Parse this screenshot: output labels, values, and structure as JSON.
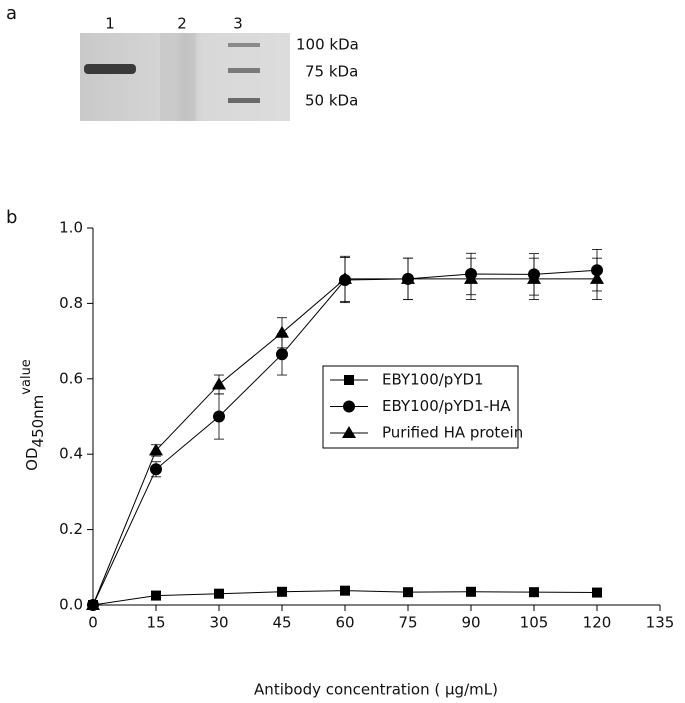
{
  "gel": {
    "label": "a",
    "lanes": [
      "1",
      "2",
      "3"
    ],
    "markers": [
      "100 kDa",
      "75 kDa",
      "50 kDa"
    ]
  },
  "chart_data": {
    "type": "line",
    "panel_label": "b",
    "xlabel": "Antibody concentration ( µg/mL)",
    "ylabel": "OD",
    "ylabel_sub": "450nm",
    "ylabel_tail": "value",
    "xlim": [
      0,
      135
    ],
    "xticks": [
      0,
      15,
      30,
      45,
      60,
      75,
      90,
      105,
      120,
      135
    ],
    "ylim": [
      0,
      1
    ],
    "yticks": [
      {
        "value": 0,
        "label": "0.0"
      },
      0.2,
      0.4,
      0.6,
      0.8,
      {
        "value": 1,
        "label": "1.0"
      }
    ],
    "x": [
      0,
      15,
      30,
      45,
      60,
      75,
      90,
      105,
      120
    ],
    "series": [
      {
        "name": "EBY100/pYD1",
        "color": "#000000",
        "marker": "square",
        "values": [
          0,
          0.025,
          0.03,
          0.035,
          0.038,
          0.034,
          0.035,
          0.034,
          0.033
        ]
      },
      {
        "name": "EBY100/pYD1-HA",
        "color": "#000000",
        "marker": "circle",
        "values": [
          0,
          0.36,
          0.5,
          0.665,
          0.862,
          0.865,
          0.878,
          0.877,
          0.888
        ],
        "errors": [
          0,
          0.02,
          0.06,
          0.055,
          0.06,
          0.055,
          0.055,
          0.055,
          0.055
        ]
      },
      {
        "name": "Purified HA protein",
        "color": "#000000",
        "marker": "triangle",
        "values": [
          0,
          0.41,
          0.585,
          0.722,
          0.865,
          0.865,
          0.865,
          0.865,
          0.865
        ],
        "errors": [
          0,
          0.015,
          0.025,
          0.04,
          0.06,
          0.055,
          0.055,
          0.055,
          0.055
        ]
      }
    ]
  }
}
